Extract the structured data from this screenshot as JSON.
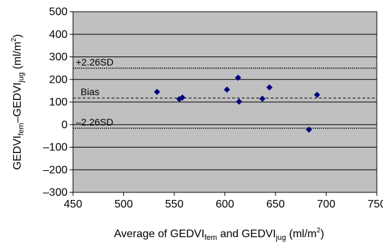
{
  "chart_data": {
    "type": "scatter",
    "xlabel": {
      "base": "Average of GEDVI",
      "sub1": "fem",
      "mid": " and GEDVI",
      "sub2": "jug",
      "tail": " (ml/m",
      "sup": "2",
      "end": ")"
    },
    "ylabel": {
      "base": "GEDVI",
      "sub1": "fem",
      "mid": "–GEDVI",
      "sub2": "jug",
      "tail": " (ml/m",
      "sup": "2",
      "end": ")"
    },
    "xlim": [
      450,
      750
    ],
    "ylim": [
      -300,
      500
    ],
    "x_ticks": [
      450,
      500,
      550,
      600,
      650,
      700,
      750
    ],
    "y_ticks": [
      -300,
      -200,
      -100,
      0,
      100,
      200,
      300,
      400,
      500
    ],
    "x_tick_labels": [
      "450",
      "500",
      "550",
      "600",
      "650",
      "700",
      "750"
    ],
    "y_tick_labels": [
      "–300",
      "–200",
      "–100",
      "0",
      "100",
      "200",
      "300",
      "400",
      "500"
    ],
    "grid": "horizontal",
    "plot_background": "#c0c0c0",
    "marker_color": "#000080",
    "points": [
      {
        "x": 533,
        "y": 145
      },
      {
        "x": 555,
        "y": 113
      },
      {
        "x": 558,
        "y": 120
      },
      {
        "x": 602,
        "y": 155
      },
      {
        "x": 613,
        "y": 208
      },
      {
        "x": 614,
        "y": 102
      },
      {
        "x": 637,
        "y": 115
      },
      {
        "x": 644,
        "y": 165
      },
      {
        "x": 683,
        "y": -22
      },
      {
        "x": 691,
        "y": 132
      }
    ],
    "reference_lines": [
      {
        "label": "+2.26SD",
        "y": 250,
        "style": "dotted"
      },
      {
        "label": "Bias",
        "y": 118,
        "style": "dashed"
      },
      {
        "label": "–2.26SD",
        "y": -16,
        "style": "dotted"
      }
    ]
  }
}
